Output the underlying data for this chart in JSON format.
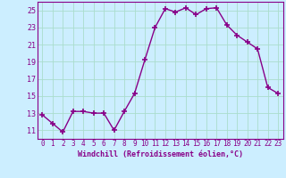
{
  "x": [
    0,
    1,
    2,
    3,
    4,
    5,
    6,
    7,
    8,
    9,
    10,
    11,
    12,
    13,
    14,
    15,
    16,
    17,
    18,
    19,
    20,
    21,
    22,
    23
  ],
  "y": [
    12.8,
    11.8,
    10.8,
    13.2,
    13.2,
    13.0,
    13.0,
    11.0,
    13.2,
    15.3,
    19.2,
    23.0,
    25.2,
    24.8,
    25.3,
    24.5,
    25.2,
    25.3,
    23.3,
    22.1,
    21.3,
    20.5,
    16.0,
    15.3
  ],
  "xlabel": "Windchill (Refroidissement éolien,°C)",
  "ylim": [
    10.0,
    26.0
  ],
  "yticks": [
    11,
    13,
    15,
    17,
    19,
    21,
    23,
    25
  ],
  "xticks": [
    0,
    1,
    2,
    3,
    4,
    5,
    6,
    7,
    8,
    9,
    10,
    11,
    12,
    13,
    14,
    15,
    16,
    17,
    18,
    19,
    20,
    21,
    22,
    23
  ],
  "line_color": "#880088",
  "marker": "+",
  "marker_size": 4,
  "marker_lw": 1.2,
  "line_width": 1.0,
  "bg_color": "#cceeff",
  "grid_color": "#aaddcc",
  "label_color": "#880088",
  "tick_color": "#880088",
  "spine_color": "#880088",
  "xlabel_fontsize": 6.0,
  "tick_fontsize": 5.5,
  "ytick_fontsize": 6.0
}
